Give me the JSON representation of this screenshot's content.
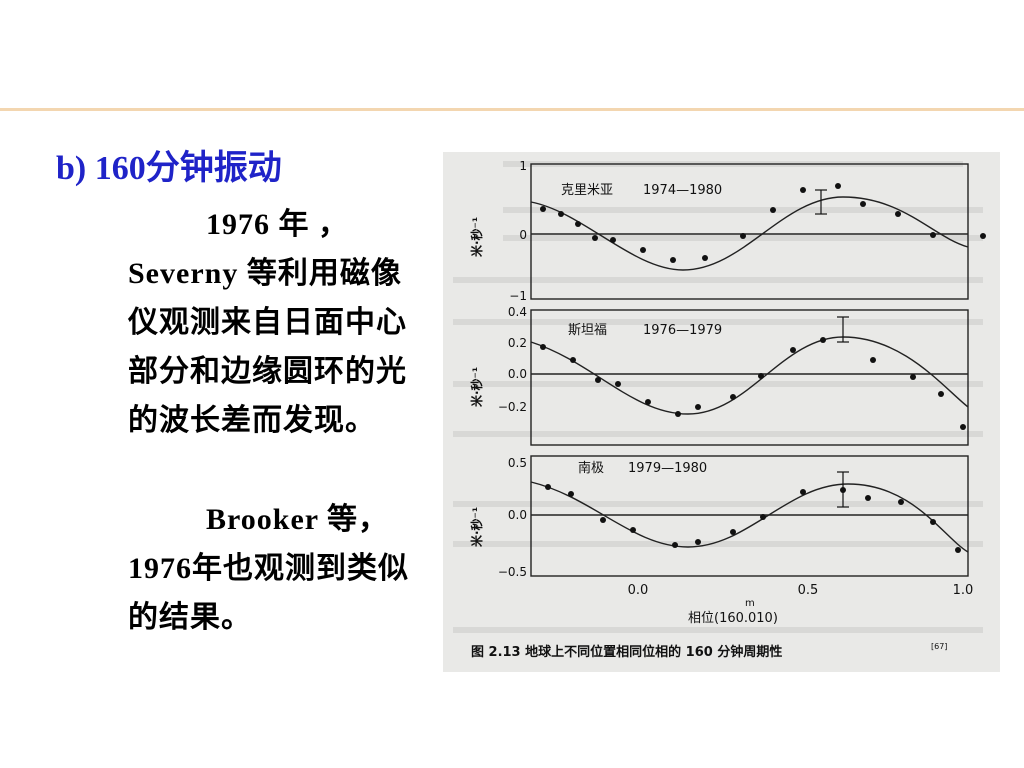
{
  "slide": {
    "heading": "b) 160分钟振动",
    "p1_line1": "1976 年 ，",
    "p1_rest": "Severny 等利用磁像仪观测来自日面中心部分和边缘圆环的光的波长差而发现。",
    "p2_line1": "Brooker 等，",
    "p2_rest": "1976年也观测到类似的结果。"
  },
  "figure": {
    "caption": "图 2.13   地球上不同位置相同位相的 160 分钟周期性",
    "caption_ref": "[67]",
    "xlabel": "相位(160.010)",
    "xlabel_sup": "m",
    "ylabel": "米·秒⁻¹",
    "x_ticks": [
      "0.0",
      "0.5",
      "1.0"
    ],
    "panels": [
      {
        "title": "克里米亚",
        "years": "1974—1980",
        "y_ticks": [
          "1",
          "0",
          "−1"
        ]
      },
      {
        "title": "斯坦福",
        "years": "1976—1979",
        "y_ticks": [
          "0.4",
          "0.2",
          "0.0",
          "−0.2"
        ]
      },
      {
        "title": "南极",
        "years": "1979—1980",
        "y_ticks": [
          "0.5",
          "0.0",
          "−0.5"
        ]
      }
    ]
  }
}
